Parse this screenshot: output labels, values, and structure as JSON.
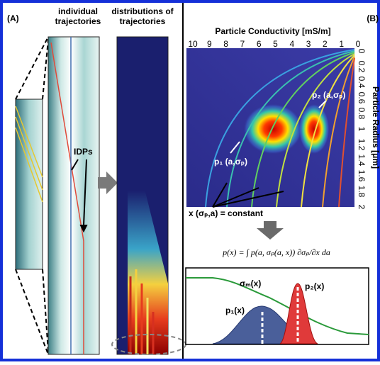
{
  "panel_a": {
    "label": "(A)",
    "header_left": [
      "individual",
      "trajectories"
    ],
    "header_right": [
      "distributions of",
      "trajectories"
    ],
    "annotation": "IDPs"
  },
  "panel_b": {
    "label": "(B)",
    "x_axis_title": "Particle Conductivity [mS/m]",
    "x_ticks": [
      "10",
      "9",
      "8",
      "7",
      "6",
      "5",
      "4",
      "3",
      "2",
      "1",
      "0"
    ],
    "y_axis_title": "Particle Radius [μm]",
    "y_ticks": [
      "0",
      "0.2",
      "0.4",
      "0.6",
      "0.8",
      "1",
      "1.2",
      "1.4",
      "1.6",
      "1.8",
      "2"
    ],
    "p2_label": "p₂ (a,σₚ)",
    "p1_label": "p₁ (a,σₚ)",
    "constant_label": "x (σₚ,a) = constant",
    "formula": "p(x) = ∫ p(a, σₚ(a, x)) ∂σₚ/∂x da",
    "sigma_label": "σₘ(x)",
    "p2x_label": "p₂(x)",
    "p1x_label": "p₁(x)"
  }
}
